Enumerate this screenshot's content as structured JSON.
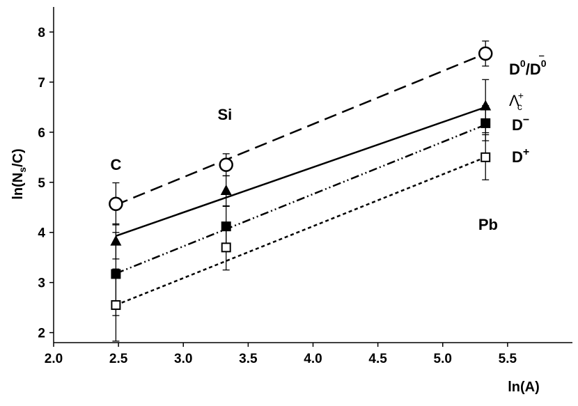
{
  "chart_data": {
    "type": "scatter",
    "xlabel": "ln(A)",
    "ylabel_main": "ln(N",
    "ylabel_sub": "s",
    "ylabel_tail": "/C)",
    "xlim": [
      2.0,
      6.0
    ],
    "ylim": [
      1.8,
      8.5
    ],
    "x_ticks": [
      "2.0",
      "2.5",
      "3.0",
      "3.5",
      "4.0",
      "4.5",
      "5.0",
      "5.5"
    ],
    "y_ticks": [
      "2",
      "3",
      "4",
      "5",
      "6",
      "7",
      "8"
    ],
    "annotations": [
      {
        "text": "C",
        "x": 2.48,
        "y": 5.25
      },
      {
        "text": "Si",
        "x": 3.32,
        "y": 6.25
      },
      {
        "text": "Pb",
        "x": 5.35,
        "y": 4.05
      }
    ],
    "series": [
      {
        "name_main": "D",
        "name_sup": "0",
        "name_sep": "/",
        "name_main2": "D",
        "name_sup2": "0",
        "name_bar": "‾",
        "marker": "open-circle",
        "line": "longdash",
        "x": [
          2.48,
          3.33,
          5.33
        ],
        "y": [
          4.57,
          5.35,
          7.57
        ],
        "err": [
          0.42,
          0.22,
          0.25
        ],
        "fit": [
          4.55,
          7.57
        ]
      },
      {
        "name_main": "Λ",
        "name_sub": "c",
        "name_sup": "+",
        "marker": "filled-triangle",
        "line": "solid",
        "x": [
          2.48,
          3.33,
          5.33
        ],
        "y": [
          3.82,
          4.83,
          6.52
        ],
        "err": [
          0.35,
          0.3,
          0.53
        ],
        "fit": [
          3.93,
          6.5
        ]
      },
      {
        "name_main": "D",
        "name_sup": "−",
        "marker": "filled-square",
        "line": "dashdotdot",
        "x": [
          2.48,
          3.33,
          5.33
        ],
        "y": [
          3.17,
          4.12,
          6.18
        ],
        "err": [
          0.83,
          0.4,
          0.35
        ],
        "fit": [
          3.18,
          6.15
        ]
      },
      {
        "name_main": "D",
        "name_sup": "+",
        "marker": "open-square",
        "line": "dotted",
        "x": [
          2.48,
          3.33,
          5.33
        ],
        "y": [
          2.55,
          3.7,
          5.5
        ],
        "err": [
          0.72,
          0.45,
          0.45
        ],
        "fit": [
          2.55,
          5.5
        ]
      }
    ]
  }
}
